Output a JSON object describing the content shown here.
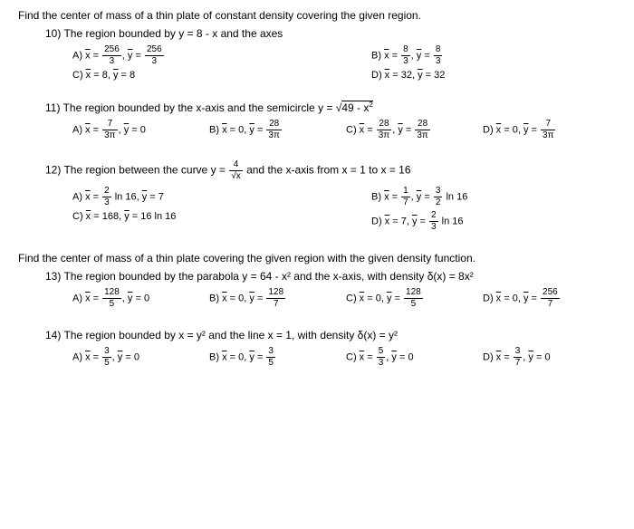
{
  "section1_title": "Find the center of mass of a thin plate of constant density covering the given region.",
  "q10": {
    "num": "10)",
    "text": "The region bounded by y = 8 - x and the axes",
    "A": {
      "label": "A)",
      "xnum": "256",
      "xden": "3",
      "ynum": "256",
      "yden": "3"
    },
    "B": {
      "label": "B)",
      "xnum": "8",
      "xden": "3",
      "ynum": "8",
      "yden": "3"
    },
    "C": {
      "label": "C)",
      "x": "8",
      "y": "8"
    },
    "D": {
      "label": "D)",
      "x": "32",
      "y": "32"
    }
  },
  "q11": {
    "num": "11)",
    "text": "The region bounded by the x-axis and the semicircle y = ",
    "radicand": "49 - x",
    "A": {
      "label": "A)",
      "xnum": "7",
      "xden": "3π",
      "y": "0"
    },
    "B": {
      "label": "B)",
      "x": "0",
      "ynum": "28",
      "yden": "3π"
    },
    "C": {
      "label": "C)",
      "xnum": "28",
      "xden": "3π",
      "ynum": "28",
      "yden": "3π"
    },
    "D": {
      "label": "D)",
      "x": "0",
      "ynum": "7",
      "yden": "3π"
    }
  },
  "q12": {
    "num": "12)",
    "text1": "The region between the curve y = ",
    "fnum": "4",
    "fden": "√x",
    "text2": " and the x-axis from x = 1 to x = 16",
    "A": {
      "label": "A)",
      "xnum": "2",
      "xden": "3",
      "tail": " ln 16,",
      "y": "7"
    },
    "B": {
      "label": "B)",
      "xnum": "1",
      "xden": "7",
      "ynum": "3",
      "yden": "2",
      "tail": " ln 16"
    },
    "C": {
      "label": "C)",
      "x": "168",
      "y": "16 ln 16"
    },
    "D": {
      "label": "D)",
      "x": "7",
      "ynum": "2",
      "yden": "3",
      "tail": " ln 16"
    }
  },
  "section2_title": "Find the center of mass of a thin plate covering the given region with the given density function.",
  "q13": {
    "num": "13)",
    "text": "The region bounded by the parabola y = 64 - x² and the x-axis, with density δ(x) = 8x²",
    "A": {
      "label": "A)",
      "xnum": "128",
      "xden": "5",
      "y": "0"
    },
    "B": {
      "label": "B)",
      "x": "0",
      "ynum": "128",
      "yden": "7"
    },
    "C": {
      "label": "C)",
      "x": "0",
      "ynum": "128",
      "yden": "5"
    },
    "D": {
      "label": "D)",
      "x": "0",
      "ynum": "256",
      "yden": "7"
    }
  },
  "q14": {
    "num": "14)",
    "text": "The region bounded by x = y² and the line x = 1, with density δ(x) = y²",
    "A": {
      "label": "A)",
      "xnum": "3",
      "xden": "5",
      "y": "0"
    },
    "B": {
      "label": "B)",
      "x": "0",
      "ynum": "3",
      "yden": "5"
    },
    "C": {
      "label": "C)",
      "xnum": "5",
      "xden": "3",
      "y": "0"
    },
    "D": {
      "label": "D)",
      "xnum": "3",
      "xden": "7",
      "y": "0"
    }
  }
}
